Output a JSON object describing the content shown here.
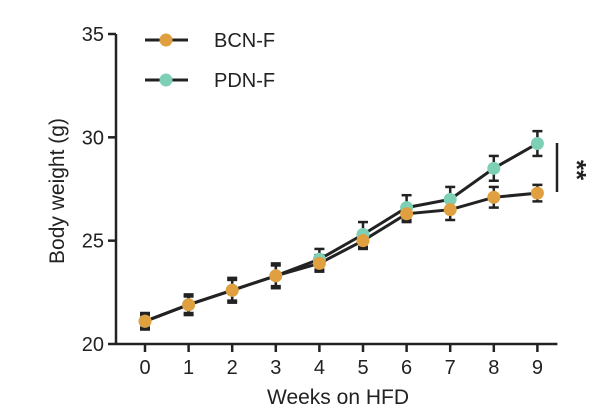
{
  "chart_data": {
    "type": "line",
    "xlabel": "Weeks on HFD",
    "ylabel": "Body weight (g)",
    "x": [
      0,
      1,
      2,
      3,
      4,
      5,
      6,
      7,
      8,
      9
    ],
    "xlim": [
      0,
      9
    ],
    "ylim": [
      20,
      35
    ],
    "yticks": [
      20,
      25,
      30,
      35
    ],
    "grid": false,
    "legend_position": "top-left",
    "series": [
      {
        "name": "BCN-F",
        "color": "#E0A040",
        "values": [
          21.1,
          21.9,
          22.6,
          23.3,
          23.9,
          25.0,
          26.3,
          26.5,
          27.1,
          27.3
        ],
        "error": [
          0.4,
          0.5,
          0.6,
          0.5,
          0.4,
          0.4,
          0.4,
          0.5,
          0.5,
          0.4
        ]
      },
      {
        "name": "PDN-F",
        "color": "#7DCFB6",
        "values": [
          21.1,
          21.9,
          22.6,
          23.3,
          24.1,
          25.3,
          26.6,
          27.0,
          28.5,
          29.7
        ],
        "error": [
          0.3,
          0.4,
          0.5,
          0.6,
          0.5,
          0.6,
          0.6,
          0.6,
          0.6,
          0.6
        ]
      }
    ],
    "annotation": "**"
  }
}
